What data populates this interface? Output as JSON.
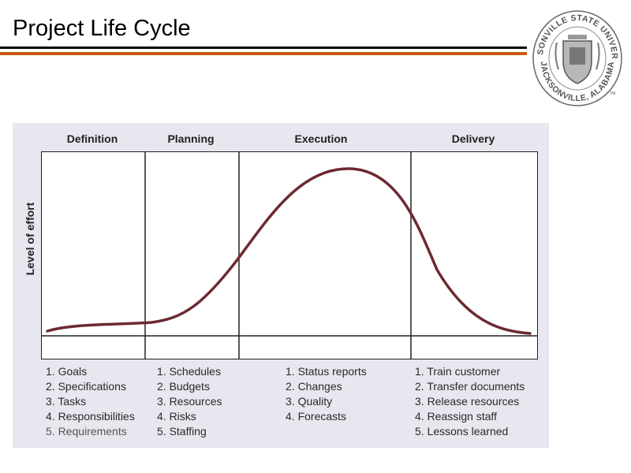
{
  "slide": {
    "title": "Project Life Cycle"
  },
  "seal": {
    "ring_top": "JACKSONVILLE STATE UNIVERSITY",
    "ring_bottom": "JACKSONVILLE, ALABAMA",
    "tm": "TM",
    "icon": "university-seal-icon"
  },
  "diagram": {
    "y_axis_label": "Level of effort",
    "curve_color": "#6b2a30",
    "phases": [
      {
        "name": "Definition",
        "items": [
          "1. Goals",
          "2. Specifications",
          "3. Tasks",
          "4. Responsibilities",
          "5. Requirements"
        ]
      },
      {
        "name": "Planning",
        "items": [
          "1. Schedules",
          "2. Budgets",
          "3. Resources",
          "4. Risks",
          "5. Staffing"
        ]
      },
      {
        "name": "Execution",
        "items": [
          "1. Status reports",
          "2. Changes",
          "3. Quality",
          "4. Forecasts"
        ]
      },
      {
        "name": "Delivery",
        "items": [
          "1. Train customer",
          "2. Transfer documents",
          "3. Release resources",
          "4. Reassign staff",
          "5. Lessons learned"
        ]
      }
    ]
  }
}
